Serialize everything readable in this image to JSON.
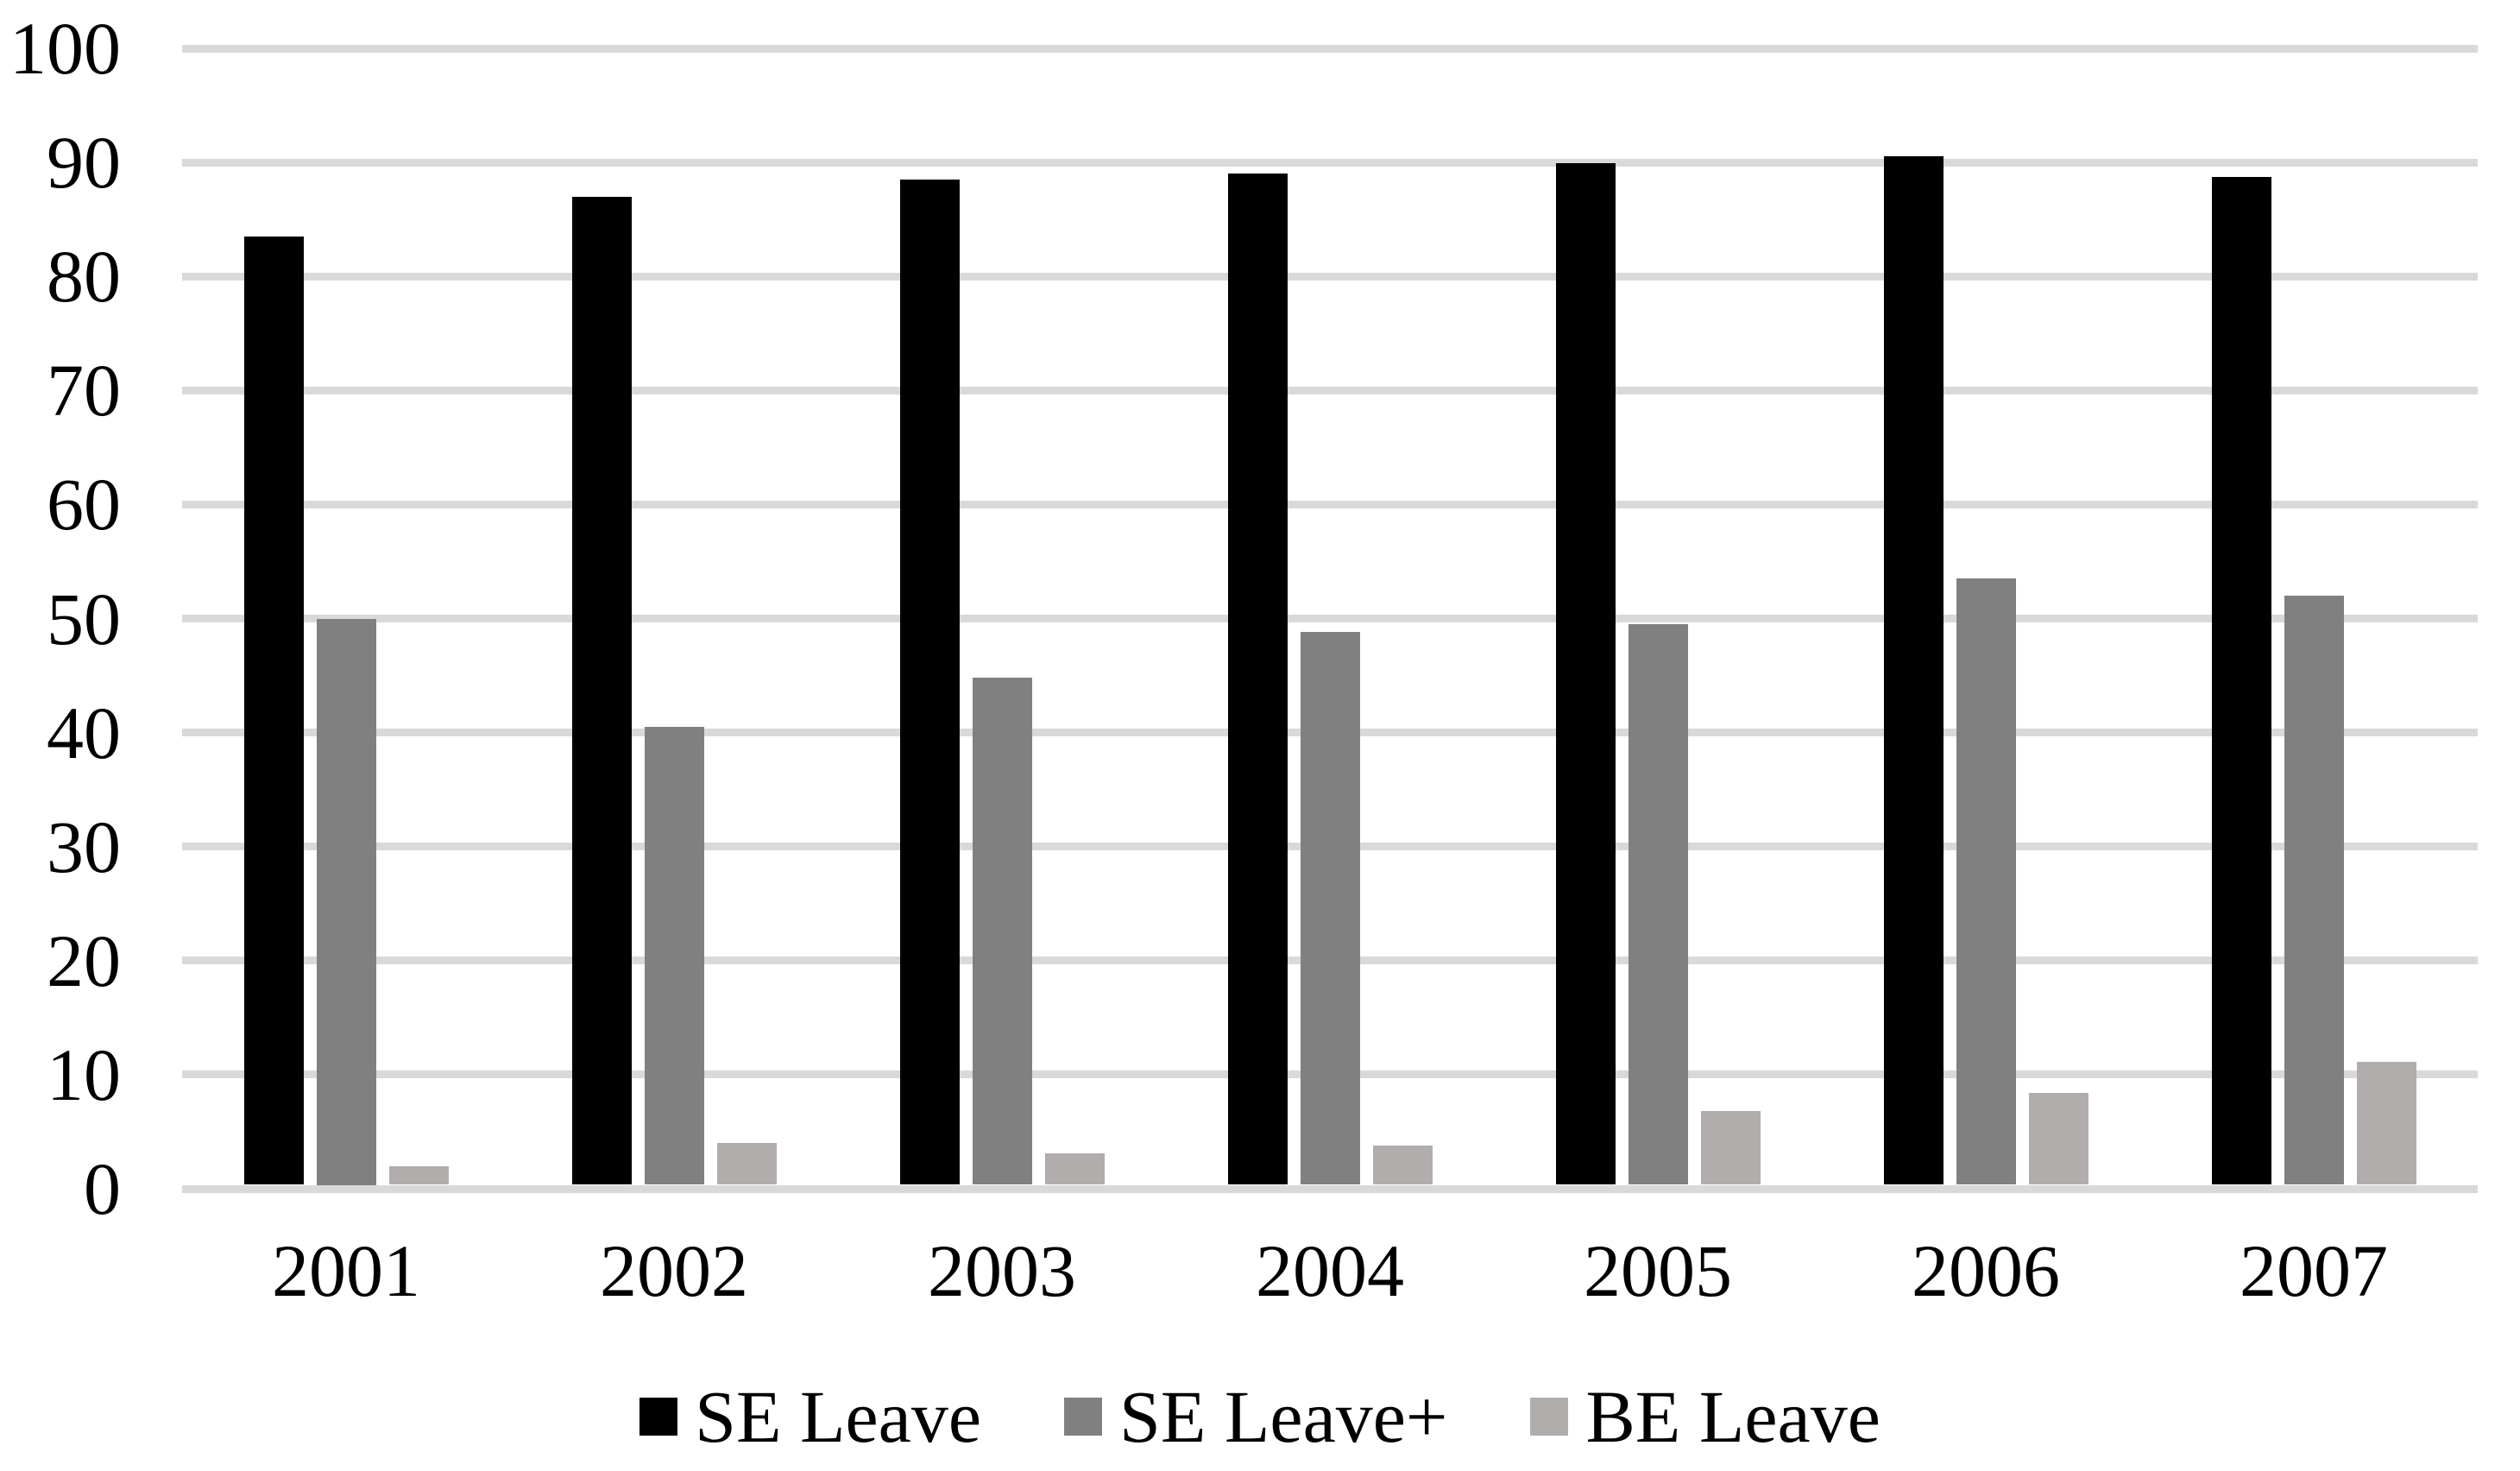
{
  "chart_data": {
    "type": "bar",
    "title": "",
    "xlabel": "",
    "ylabel": "",
    "categories": [
      "2001",
      "2002",
      "2003",
      "2004",
      "2005",
      "2006",
      "2007"
    ],
    "series": [
      {
        "name": "SE Leave",
        "color": "#000000",
        "values": [
          83.5,
          87.0,
          88.5,
          89.0,
          89.9,
          90.5,
          88.7
        ]
      },
      {
        "name": "SE Leave+",
        "color": "#808080",
        "values": [
          50.0,
          40.5,
          44.8,
          48.8,
          49.5,
          53.5,
          52.0
        ]
      },
      {
        "name": "BE Leave",
        "color": "#b1adad",
        "values": [
          2.0,
          4.0,
          3.1,
          3.8,
          6.8,
          8.4,
          11.1
        ]
      }
    ],
    "ylim": [
      0,
      100
    ],
    "yticks": [
      0,
      10,
      20,
      30,
      40,
      50,
      60,
      70,
      80,
      90,
      100
    ],
    "grid": true,
    "gridline_color": "#d9d9d9",
    "background_color": "#ffffff",
    "text_color": "#000000",
    "legend_position": "bottom",
    "legend": [
      "SE Leave",
      "SE Leave+",
      "BE Leave"
    ]
  }
}
